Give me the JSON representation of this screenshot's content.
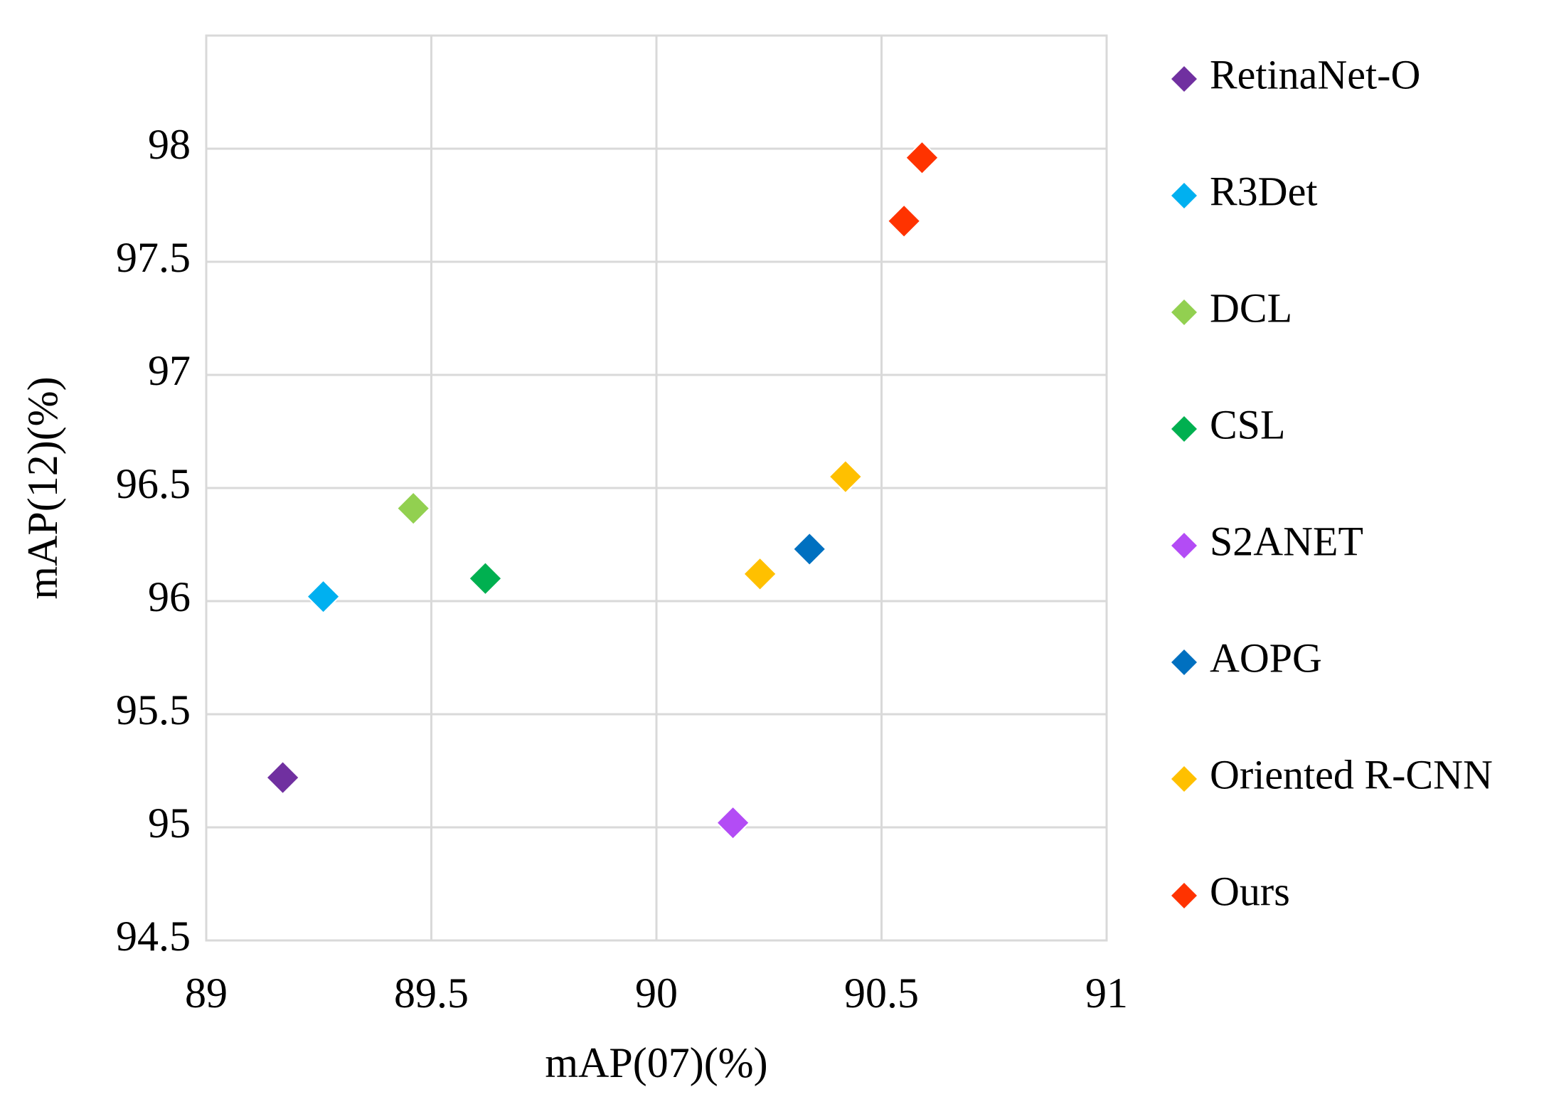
{
  "chart_data": {
    "type": "scatter",
    "x_label": "mAP(07)(%)",
    "y_label": "mAP(12)(%)",
    "xlim": [
      89,
      91
    ],
    "ylim": [
      94.5,
      98.5
    ],
    "xticks": [
      89,
      89.5,
      90,
      90.5,
      91
    ],
    "yticks": [
      94.5,
      95,
      95.5,
      96,
      96.5,
      97,
      97.5,
      98
    ],
    "grid": true,
    "legend": "right",
    "series": [
      {
        "name": "RetinaNet-O",
        "color": "#7030a0",
        "x": [
          89.17
        ],
        "values": [
          95.22
        ]
      },
      {
        "name": "R3Det",
        "color": "#00b0f0",
        "x": [
          89.26
        ],
        "values": [
          96.02
        ]
      },
      {
        "name": "DCL",
        "color": "#92d050",
        "x": [
          89.46
        ],
        "values": [
          96.41
        ]
      },
      {
        "name": "CSL",
        "color": "#00b050",
        "x": [
          89.62
        ],
        "values": [
          96.1
        ]
      },
      {
        "name": "S2ANET",
        "color": "#b34cf5",
        "x": [
          90.17
        ],
        "values": [
          95.02
        ]
      },
      {
        "name": "AOPG",
        "color": "#0070c0",
        "x": [
          90.34
        ],
        "values": [
          96.23
        ]
      },
      {
        "name": "Oriented R-CNN",
        "color": "#ffc000",
        "x": [
          90.23,
          90.42
        ],
        "values": [
          96.12,
          96.55
        ]
      },
      {
        "name": "Ours",
        "color": "#ff3300",
        "x": [
          90.55,
          90.59
        ],
        "values": [
          97.68,
          97.96
        ]
      }
    ]
  }
}
